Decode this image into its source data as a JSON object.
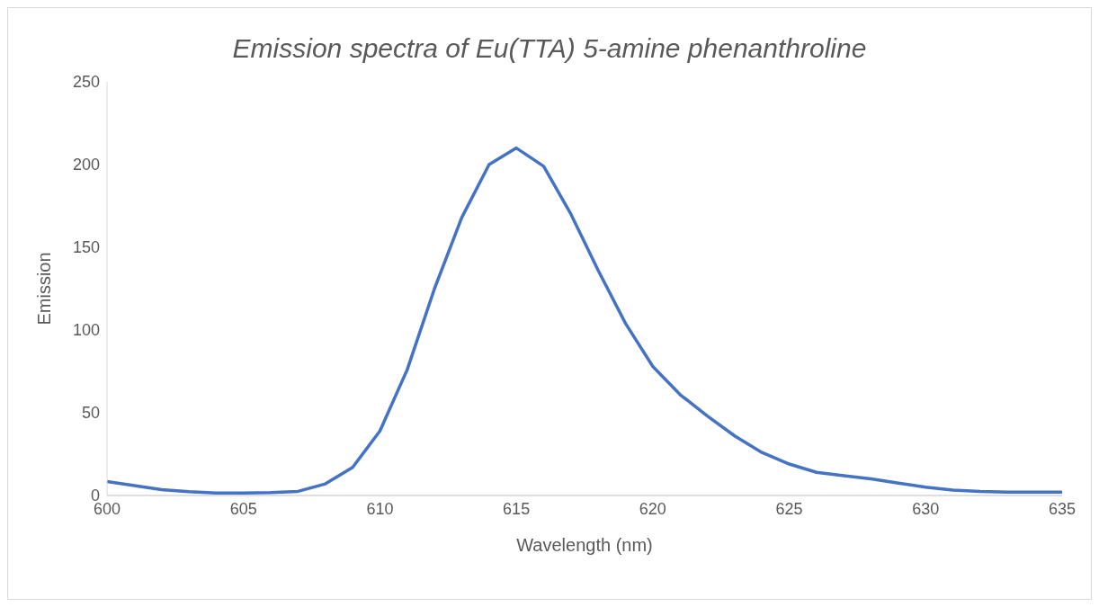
{
  "chart_data": {
    "type": "line",
    "title": "Emission spectra of Eu(TTA) 5-amine phenanthroline",
    "xlabel": "Wavelength (nm)",
    "ylabel": "Emission",
    "x": [
      600,
      601,
      602,
      603,
      604,
      605,
      606,
      607,
      608,
      609,
      610,
      611,
      612,
      613,
      614,
      615,
      616,
      617,
      618,
      619,
      620,
      621,
      622,
      623,
      624,
      625,
      626,
      627,
      628,
      629,
      630,
      631,
      632,
      633,
      634,
      635
    ],
    "series": [
      {
        "color": "#4472c4",
        "values": [
          8.5,
          6,
          3.5,
          2.3,
          1.5,
          1.5,
          1.8,
          2.5,
          7,
          17,
          39,
          76,
          125,
          168,
          200,
          210,
          199,
          170,
          136,
          104,
          78,
          61,
          48,
          36,
          26,
          19,
          14,
          12,
          10,
          7.5,
          5,
          3.3,
          2.4,
          2,
          2,
          2
        ]
      }
    ],
    "xlim": [
      600,
      635
    ],
    "xticks": [
      600,
      605,
      610,
      615,
      620,
      625,
      630,
      635
    ],
    "ylim": [
      0,
      250
    ],
    "yticks": [
      0,
      50,
      100,
      150,
      200,
      250
    ],
    "grid": false,
    "legend": false,
    "marker": "none",
    "line_style": "solid"
  }
}
